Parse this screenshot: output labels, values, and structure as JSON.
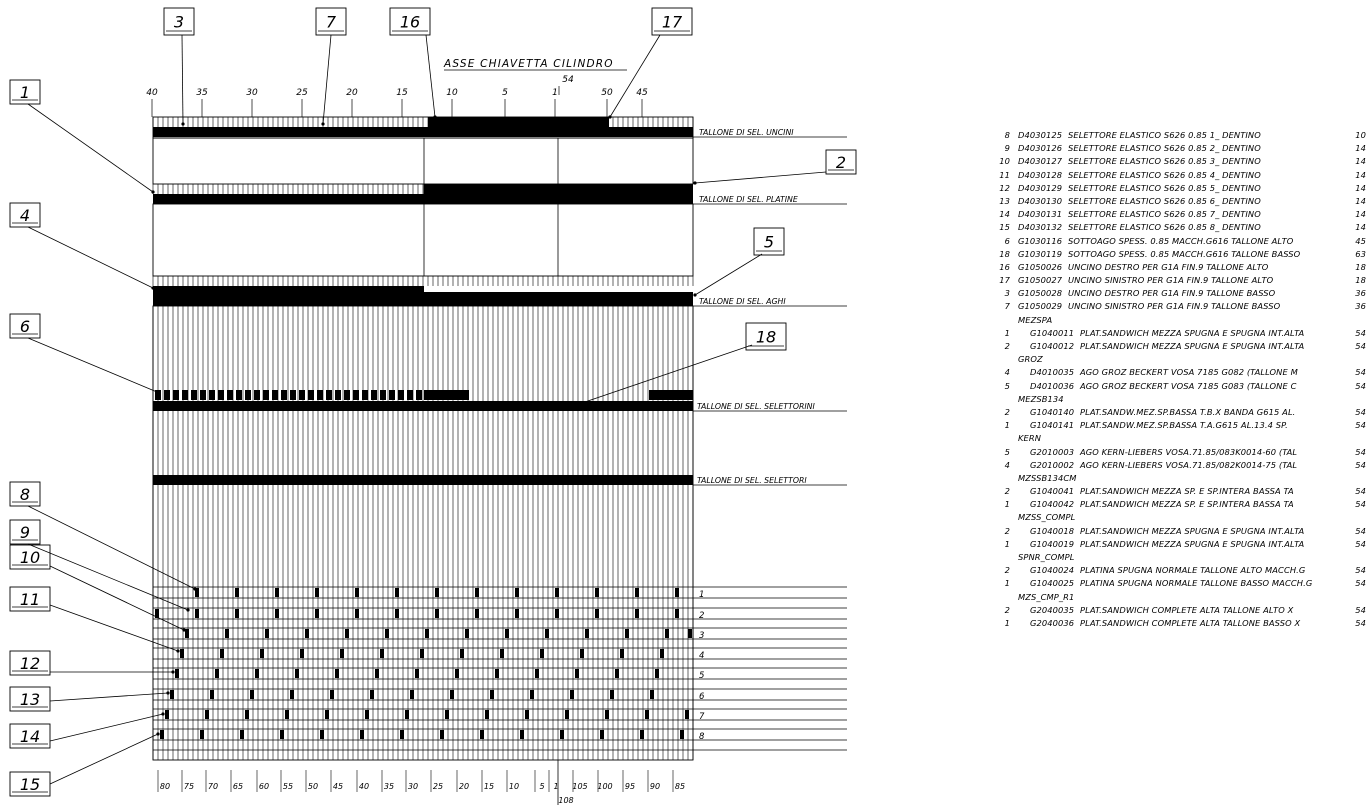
{
  "title": "ASSE CHIAVETTA CILINDRO",
  "axis_marker": "54",
  "top_scale": [
    "40",
    "35",
    "30",
    "25",
    "20",
    "15",
    "10",
    "5",
    "1",
    "50",
    "45"
  ],
  "bottom_scale": [
    "80",
    "75",
    "70",
    "65",
    "60",
    "55",
    "50",
    "45",
    "40",
    "35",
    "30",
    "25",
    "20",
    "15",
    "10",
    "5",
    "1",
    "105",
    "100",
    "95",
    "90",
    "85"
  ],
  "bottom_marker": "108",
  "track_labels": [
    "TALLONE DI SEL. UNCINI",
    "TALLONE DI SEL. PLATINE",
    "TALLONE DI SEL. AGHI",
    "TALLONE DI SEL. SELETTORINI",
    "TALLONE DI SEL. SELETTORI"
  ],
  "selector_rows": [
    "1",
    "2",
    "3",
    "4",
    "5",
    "6",
    "7",
    "8"
  ],
  "callouts": [
    "1",
    "2",
    "3",
    "4",
    "5",
    "6",
    "7",
    "8",
    "9",
    "10",
    "11",
    "12",
    "13",
    "14",
    "15",
    "16",
    "17",
    "18"
  ],
  "bom": [
    {
      "qty": "8",
      "code": "D4030125",
      "desc": "SELETTORE ELASTICO S626 0.85 1_ DENTINO",
      "total": "10"
    },
    {
      "qty": "9",
      "code": "D4030126",
      "desc": "SELETTORE ELASTICO S626 0.85 2_ DENTINO",
      "total": "14"
    },
    {
      "qty": "10",
      "code": "D4030127",
      "desc": "SELETTORE ELASTICO S626 0.85 3_ DENTINO",
      "total": "14"
    },
    {
      "qty": "11",
      "code": "D4030128",
      "desc": "SELETTORE ELASTICO S626 0.85 4_ DENTINO",
      "total": "14"
    },
    {
      "qty": "12",
      "code": "D4030129",
      "desc": "SELETTORE ELASTICO S626 0.85 5_ DENTINO",
      "total": "14"
    },
    {
      "qty": "13",
      "code": "D4030130",
      "desc": "SELETTORE ELASTICO S626 0.85 6_ DENTINO",
      "total": "14"
    },
    {
      "qty": "14",
      "code": "D4030131",
      "desc": "SELETTORE ELASTICO S626 0.85 7_ DENTINO",
      "total": "14"
    },
    {
      "qty": "15",
      "code": "D4030132",
      "desc": "SELETTORE ELASTICO S626 0.85 8_ DENTINO",
      "total": "14"
    },
    {
      "qty": "6",
      "code": "G1030116",
      "desc": "SOTTOAGO SPESS. 0.85 MACCH.G616  TALLONE ALTO",
      "total": "45"
    },
    {
      "qty": "18",
      "code": "G1030119",
      "desc": "SOTTOAGO SPESS. 0.85 MACCH.G616  TALLONE BASSO",
      "total": "63"
    },
    {
      "qty": "16",
      "code": "G1050026",
      "desc": "UNCINO DESTRO PER G1A FIN.9 TALLONE ALTO",
      "total": "18"
    },
    {
      "qty": "17",
      "code": "G1050027",
      "desc": "UNCINO SINISTRO PER G1A FIN.9 TALLONE ALTO",
      "total": "18"
    },
    {
      "qty": "3",
      "code": "G1050028",
      "desc": "UNCINO DESTRO PER G1A FIN.9 TALLONE BASSO",
      "total": "36"
    },
    {
      "qty": "7",
      "code": "G1050029",
      "desc": "UNCINO SINISTRO PER G1A FIN.9 TALLONE BASSO",
      "total": "36"
    },
    {
      "group": "MEZSPA"
    },
    {
      "qty": "1",
      "code": "G1040011",
      "indent": true,
      "desc": "PLAT.SANDWICH MEZZA SPUGNA E SPUGNA INT.ALTA",
      "total": "54"
    },
    {
      "qty": "2",
      "code": "G1040012",
      "indent": true,
      "desc": "PLAT.SANDWICH MEZZA SPUGNA E SPUGNA INT.ALTA",
      "total": "54"
    },
    {
      "group": "GROZ"
    },
    {
      "qty": "4",
      "code": "D4010035",
      "indent": true,
      "desc": "AGO GROZ BECKERT VOSA  7185  G082 (TALLONE M",
      "total": "54"
    },
    {
      "qty": "5",
      "code": "D4010036",
      "indent": true,
      "desc": "AGO GROZ BECKERT VOSA  7185  G083 (TALLONE C",
      "total": "54"
    },
    {
      "group": "MEZSB134"
    },
    {
      "qty": "2",
      "code": "G1040140",
      "indent": true,
      "desc": "PLAT.SANDW.MEZ.SP.BASSA T.B.X BANDA G615 AL.",
      "total": "54"
    },
    {
      "qty": "1",
      "code": "G1040141",
      "indent": true,
      "desc": "PLAT.SANDW.MEZ.SP.BASSA T.A.G615 AL.13.4 SP.",
      "total": "54"
    },
    {
      "group": "KERN"
    },
    {
      "qty": "5",
      "code": "G2010003",
      "indent": true,
      "desc": "AGO KERN-LIEBERS VOSA.71.85/083K0014-60 (TAL",
      "total": "54"
    },
    {
      "qty": "4",
      "code": "G2010002",
      "indent": true,
      "desc": "AGO KERN-LIEBERS VOSA.71.85/082K0014-75 (TAL",
      "total": "54"
    },
    {
      "group": "MZSSB134CM"
    },
    {
      "qty": "2",
      "code": "G1040041",
      "indent": true,
      "desc": "PLAT.SANDWICH MEZZA SP. E SP.INTERA BASSA TA",
      "total": "54"
    },
    {
      "qty": "1",
      "code": "G1040042",
      "indent": true,
      "desc": "PLAT.SANDWICH MEZZA SP. E SP.INTERA BASSA TA",
      "total": "54"
    },
    {
      "group": "MZSS_COMPL"
    },
    {
      "qty": "2",
      "code": "G1040018",
      "indent": true,
      "desc": "PLAT.SANDWICH MEZZA SPUGNA E SPUGNA INT.ALTA",
      "total": "54"
    },
    {
      "qty": "1",
      "code": "G1040019",
      "indent": true,
      "desc": "PLAT.SANDWICH MEZZA SPUGNA E SPUGNA INT.ALTA",
      "total": "54"
    },
    {
      "group": "SPNR_COMPL"
    },
    {
      "qty": "2",
      "code": "G1040024",
      "indent": true,
      "desc": "PLATINA SPUGNA NORMALE TALLONE  ALTO MACCH.G",
      "total": "54"
    },
    {
      "qty": "1",
      "code": "G1040025",
      "indent": true,
      "desc": "PLATINA SPUGNA NORMALE TALLONE BASSO MACCH.G",
      "total": "54"
    },
    {
      "group": "MZS_CMP_R1"
    },
    {
      "qty": "2",
      "code": "G2040035",
      "indent": true,
      "desc": "PLAT.SANDWICH COMPLETE ALTA TALLONE ALTO  X",
      "total": "54"
    },
    {
      "qty": "1",
      "code": "G2040036",
      "indent": true,
      "desc": "PLAT.SANDWICH COMPLETE ALTA TALLONE BASSO  X",
      "total": "54"
    }
  ]
}
